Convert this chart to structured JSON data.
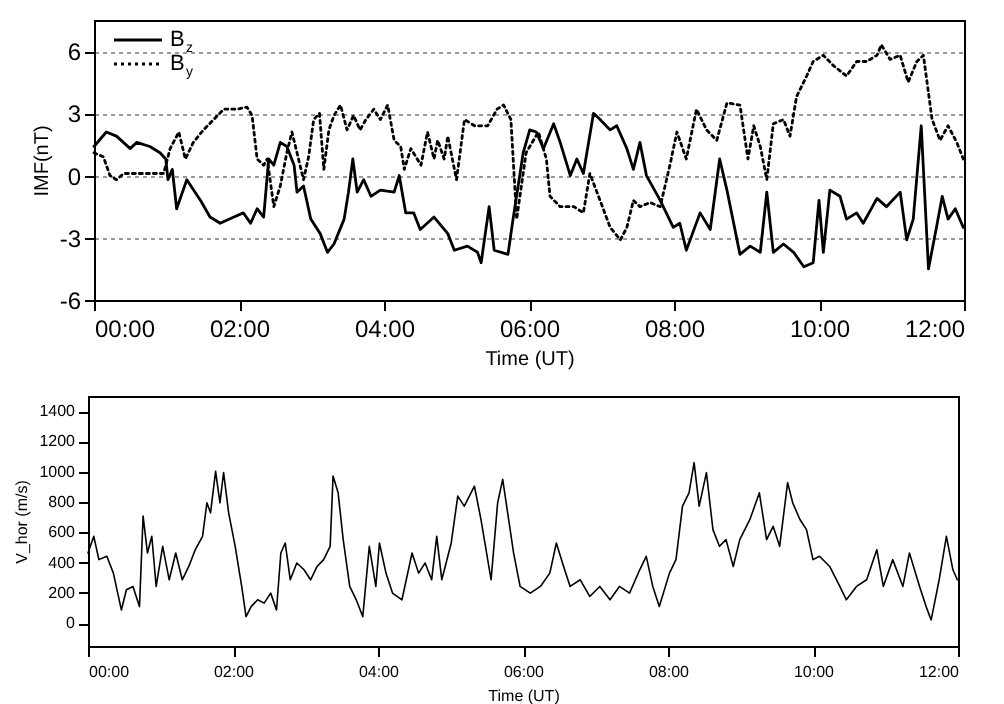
{
  "chart_data": [
    {
      "type": "line",
      "xlabel": "Time (UT)",
      "ylabel": "IMF(nT)",
      "legend": "top left",
      "grid": "y",
      "xlim": [
        0,
        12
      ],
      "xticks": [
        {
          "value": 0,
          "label": "00:00"
        },
        {
          "value": 2,
          "label": "02:00"
        },
        {
          "value": 4,
          "label": "04:00"
        },
        {
          "value": 6,
          "label": "06:00"
        },
        {
          "value": 8,
          "label": "08:00"
        },
        {
          "value": 10,
          "label": "10:00"
        },
        {
          "value": 12,
          "label": "12:00"
        }
      ],
      "ylim": [
        -6,
        7.5
      ],
      "yticks": [
        -6,
        -3,
        0,
        3,
        6
      ],
      "series": [
        {
          "name": "B$_{z}$",
          "color": "#000000",
          "line_style": "solid",
          "x": [
            0,
            0.17,
            0.31,
            0.5,
            0.59,
            0.77,
            0.91,
            0.99,
            1.02,
            1.08,
            1.14,
            1.28,
            1.47,
            1.6,
            1.74,
            1.93,
            2.06,
            2.16,
            2.25,
            2.34,
            2.41,
            2.48,
            2.57,
            2.66,
            2.76,
            2.8,
            2.89,
            2.99,
            3.12,
            3.22,
            3.31,
            3.45,
            3.51,
            3.57,
            3.63,
            3.72,
            3.82,
            3.95,
            4.14,
            4.21,
            4.3,
            4.41,
            4.5,
            4.69,
            4.88,
            4.97,
            5.15,
            5.29,
            5.34,
            5.45,
            5.52,
            5.71,
            5.78,
            5.92,
            6.01,
            6.1,
            6.2,
            6.34,
            6.43,
            6.57,
            6.66,
            6.75,
            6.89,
            6.98,
            7.12,
            7.21,
            7.35,
            7.44,
            7.53,
            7.62,
            7.81,
            7.99,
            8.08,
            8.17,
            8.36,
            8.5,
            8.63,
            8.73,
            8.91,
            9.05,
            9.19,
            9.28,
            9.37,
            9.51,
            9.65,
            9.79,
            9.92,
            10.0,
            10.06,
            10.15,
            10.29,
            10.38,
            10.52,
            10.61,
            10.8,
            10.93,
            11.12,
            11.21,
            11.3,
            11.41,
            11.51,
            11.62,
            11.7,
            11.78,
            11.88,
            11.99
          ],
          "values": [
            1.4,
            2.1,
            1.9,
            1.3,
            1.6,
            1.4,
            1.1,
            0.8,
            -0.2,
            0.3,
            -1.6,
            -0.2,
            -1.2,
            -2.0,
            -2.3,
            -2.0,
            -1.8,
            -2.3,
            -1.6,
            -2.0,
            0.8,
            0.5,
            1.6,
            1.4,
            0.5,
            -0.8,
            -0.5,
            -2.1,
            -2.8,
            -3.7,
            -3.3,
            -2.1,
            -0.8,
            0.8,
            -0.8,
            -0.2,
            -1.0,
            -0.7,
            -0.8,
            0,
            -1.8,
            -1.8,
            -2.6,
            -2.0,
            -2.8,
            -3.6,
            -3.4,
            -3.7,
            -4.2,
            -1.5,
            -3.6,
            -3.8,
            -2.1,
            1.1,
            2.2,
            2.1,
            1.3,
            2.5,
            1.6,
            0,
            0.8,
            0.1,
            3.0,
            2.7,
            2.2,
            2.4,
            1.3,
            0.3,
            1.6,
            0,
            -1.2,
            -2.5,
            -2.3,
            -3.6,
            -1.8,
            -2.6,
            0.8,
            -0.7,
            -3.8,
            -3.4,
            -3.7,
            -0.8,
            -3.7,
            -3.3,
            -3.7,
            -4.4,
            -4.2,
            -1.2,
            -3.7,
            -0.7,
            -1.0,
            -2.1,
            -1.8,
            -2.3,
            -1.1,
            -1.5,
            -0.8,
            -3.1,
            -2.1,
            2.4,
            -4.5,
            -2.5,
            -1.0,
            -2.1,
            -1.6,
            -2.5
          ]
        },
        {
          "name": "B$_{y}$",
          "color": "#000000",
          "line_style": "dotted",
          "x": [
            0,
            0.13,
            0.22,
            0.31,
            0.41,
            0.96,
            1.05,
            1.17,
            1.26,
            1.37,
            1.51,
            1.65,
            1.79,
            1.97,
            2.11,
            2.18,
            2.25,
            2.34,
            2.39,
            2.48,
            2.57,
            2.66,
            2.73,
            2.8,
            2.89,
            2.96,
            3.03,
            3.11,
            3.17,
            3.24,
            3.31,
            3.4,
            3.49,
            3.58,
            3.67,
            3.75,
            3.86,
            3.95,
            4.05,
            4.14,
            4.23,
            4.28,
            4.37,
            4.51,
            4.6,
            4.69,
            4.74,
            4.83,
            4.88,
            5.0,
            5.11,
            5.25,
            5.43,
            5.56,
            5.65,
            5.75,
            5.83,
            5.96,
            6.13,
            6.24,
            6.29,
            6.43,
            6.62,
            6.75,
            6.84,
            6.98,
            7.12,
            7.26,
            7.35,
            7.44,
            7.53,
            7.67,
            7.81,
            7.95,
            8.04,
            8.17,
            8.31,
            8.45,
            8.59,
            8.73,
            8.91,
            9.02,
            9.1,
            9.19,
            9.28,
            9.37,
            9.51,
            9.6,
            9.69,
            9.83,
            9.92,
            10.06,
            10.2,
            10.38,
            10.52,
            10.66,
            10.8,
            10.86,
            10.98,
            11.12,
            11.23,
            11.35,
            11.44,
            11.56,
            11.67,
            11.78,
            11.9,
            11.99
          ],
          "values": [
            1.1,
            0.9,
            0,
            -0.2,
            0.1,
            0.1,
            1.3,
            2.1,
            0.8,
            1.6,
            2.2,
            2.7,
            3.2,
            3.2,
            3.3,
            2.9,
            0.8,
            0.5,
            0.8,
            -1.5,
            -0.5,
            1.1,
            2.1,
            1.1,
            -0.2,
            0.9,
            2.7,
            3.0,
            0.3,
            2.2,
            2.9,
            3.4,
            2.2,
            2.9,
            2.2,
            2.7,
            3.2,
            2.7,
            3.4,
            1.7,
            1.4,
            0.3,
            1.3,
            0.5,
            2.1,
            0.8,
            1.7,
            0.8,
            1.9,
            -0.2,
            2.7,
            2.4,
            2.4,
            3.2,
            3.4,
            2.7,
            -2.1,
            1.1,
            2.1,
            0.8,
            -1.0,
            -1.5,
            -1.5,
            -1.8,
            0.1,
            -1.2,
            -2.5,
            -3.1,
            -2.5,
            -1.2,
            -1.5,
            -1.3,
            -1.5,
            0.6,
            2.1,
            0.8,
            3.2,
            2.2,
            1.7,
            3.5,
            3.4,
            0.8,
            2.4,
            1.4,
            -0.2,
            2.5,
            2.7,
            1.9,
            3.8,
            4.8,
            5.5,
            5.8,
            5.3,
            4.8,
            5.5,
            5.5,
            5.8,
            6.3,
            5.6,
            5.8,
            4.5,
            5.5,
            5.8,
            2.7,
            1.7,
            2.4,
            1.6,
            0.8
          ]
        }
      ]
    },
    {
      "type": "line",
      "xlabel": "Time (UT)",
      "ylabel": "V_hor (m/s)",
      "xlim": [
        0,
        12
      ],
      "xticks": [
        {
          "value": 0,
          "label": "00:00"
        },
        {
          "value": 2,
          "label": "02:00"
        },
        {
          "value": 4,
          "label": "04:00"
        },
        {
          "value": 6,
          "label": "06:00"
        },
        {
          "value": 8,
          "label": "08:00"
        },
        {
          "value": 10,
          "label": "10:00"
        },
        {
          "value": 12,
          "label": "12:00"
        }
      ],
      "ylim": [
        -150,
        1500
      ],
      "yticks": [
        0,
        200,
        400,
        600,
        800,
        1000,
        1200,
        1400
      ],
      "series": [
        {
          "color": "#000000",
          "x": [
            0,
            0.08,
            0.15,
            0.26,
            0.35,
            0.46,
            0.53,
            0.62,
            0.71,
            0.76,
            0.82,
            0.88,
            0.94,
            1.03,
            1.12,
            1.21,
            1.3,
            1.39,
            1.48,
            1.58,
            1.64,
            1.69,
            1.76,
            1.82,
            1.87,
            1.94,
            2.03,
            2.12,
            2.18,
            2.25,
            2.34,
            2.43,
            2.52,
            2.6,
            2.66,
            2.72,
            2.79,
            2.88,
            2.98,
            3.07,
            3.16,
            3.25,
            3.34,
            3.38,
            3.45,
            3.52,
            3.61,
            3.7,
            3.79,
            3.88,
            3.97,
            4.02,
            4.11,
            4.2,
            4.33,
            4.47,
            4.56,
            4.65,
            4.74,
            4.81,
            4.88,
            5.01,
            5.1,
            5.19,
            5.33,
            5.42,
            5.56,
            5.65,
            5.72,
            5.87,
            5.96,
            6.1,
            6.24,
            6.37,
            6.46,
            6.56,
            6.65,
            6.79,
            6.92,
            7.06,
            7.2,
            7.33,
            7.47,
            7.61,
            7.7,
            7.79,
            7.88,
            8.02,
            8.11,
            8.2,
            8.29,
            8.36,
            8.43,
            8.53,
            8.62,
            8.71,
            8.8,
            8.9,
            8.99,
            9.13,
            9.26,
            9.36,
            9.45,
            9.54,
            9.65,
            9.72,
            9.82,
            9.91,
            10.0,
            10.09,
            10.23,
            10.37,
            10.46,
            10.6,
            10.74,
            10.88,
            10.97,
            11.1,
            11.24,
            11.33,
            11.47,
            11.56,
            11.63,
            11.74,
            11.84,
            11.93,
            11.99
          ],
          "values": [
            464,
            574,
            420,
            442,
            331,
            88,
            221,
            243,
            110,
            707,
            464,
            574,
            243,
            508,
            287,
            464,
            287,
            375,
            486,
            574,
            795,
            729,
            1003,
            795,
            994,
            729,
            508,
            243,
            44,
            110,
            155,
            133,
            199,
            88,
            464,
            530,
            287,
            398,
            353,
            287,
            375,
            420,
            508,
            972,
            861,
            552,
            243,
            155,
            44,
            508,
            243,
            530,
            331,
            199,
            155,
            464,
            331,
            398,
            287,
            574,
            287,
            530,
            839,
            773,
            905,
            685,
            287,
            795,
            950,
            464,
            243,
            199,
            243,
            331,
            530,
            375,
            243,
            287,
            177,
            243,
            155,
            243,
            199,
            353,
            442,
            243,
            110,
            331,
            420,
            773,
            861,
            1060,
            773,
            994,
            618,
            508,
            552,
            375,
            552,
            685,
            861,
            552,
            640,
            508,
            928,
            795,
            685,
            618,
            420,
            442,
            375,
            243,
            155,
            243,
            287,
            486,
            243,
            420,
            243,
            464,
            243,
            110,
            22,
            287,
            574,
            353,
            287
          ]
        }
      ]
    }
  ]
}
